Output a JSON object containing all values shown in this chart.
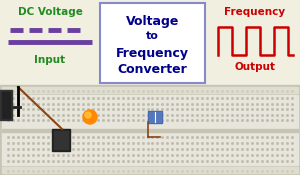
{
  "title_line1": "Voltage",
  "title_line2": "to",
  "title_line3": "Frequency",
  "title_line4": "Converter",
  "title_color": "#00008B",
  "left_title": "DC Voltage",
  "left_subtitle": "Input",
  "left_text_color": "#228B22",
  "left_dash_color": "#6B3FA0",
  "right_title": "Frequency",
  "right_subtitle": "Output",
  "right_text_color": "#CC0000",
  "right_wave_color": "#CC0000",
  "top_bg_color": "#F0EFE0",
  "center_box_bg": "#FFFFFF",
  "center_box_border": "#8888CC",
  "breadboard_bg": "#D4D0C0",
  "breadboard_border": "#999988",
  "bb_hole_color": "#BBBBAA",
  "bb_rail_top_color": "#CCCCBB",
  "bb_center_color": "#E8E4D8",
  "figsize": [
    3.0,
    1.75
  ],
  "dpi": 100
}
